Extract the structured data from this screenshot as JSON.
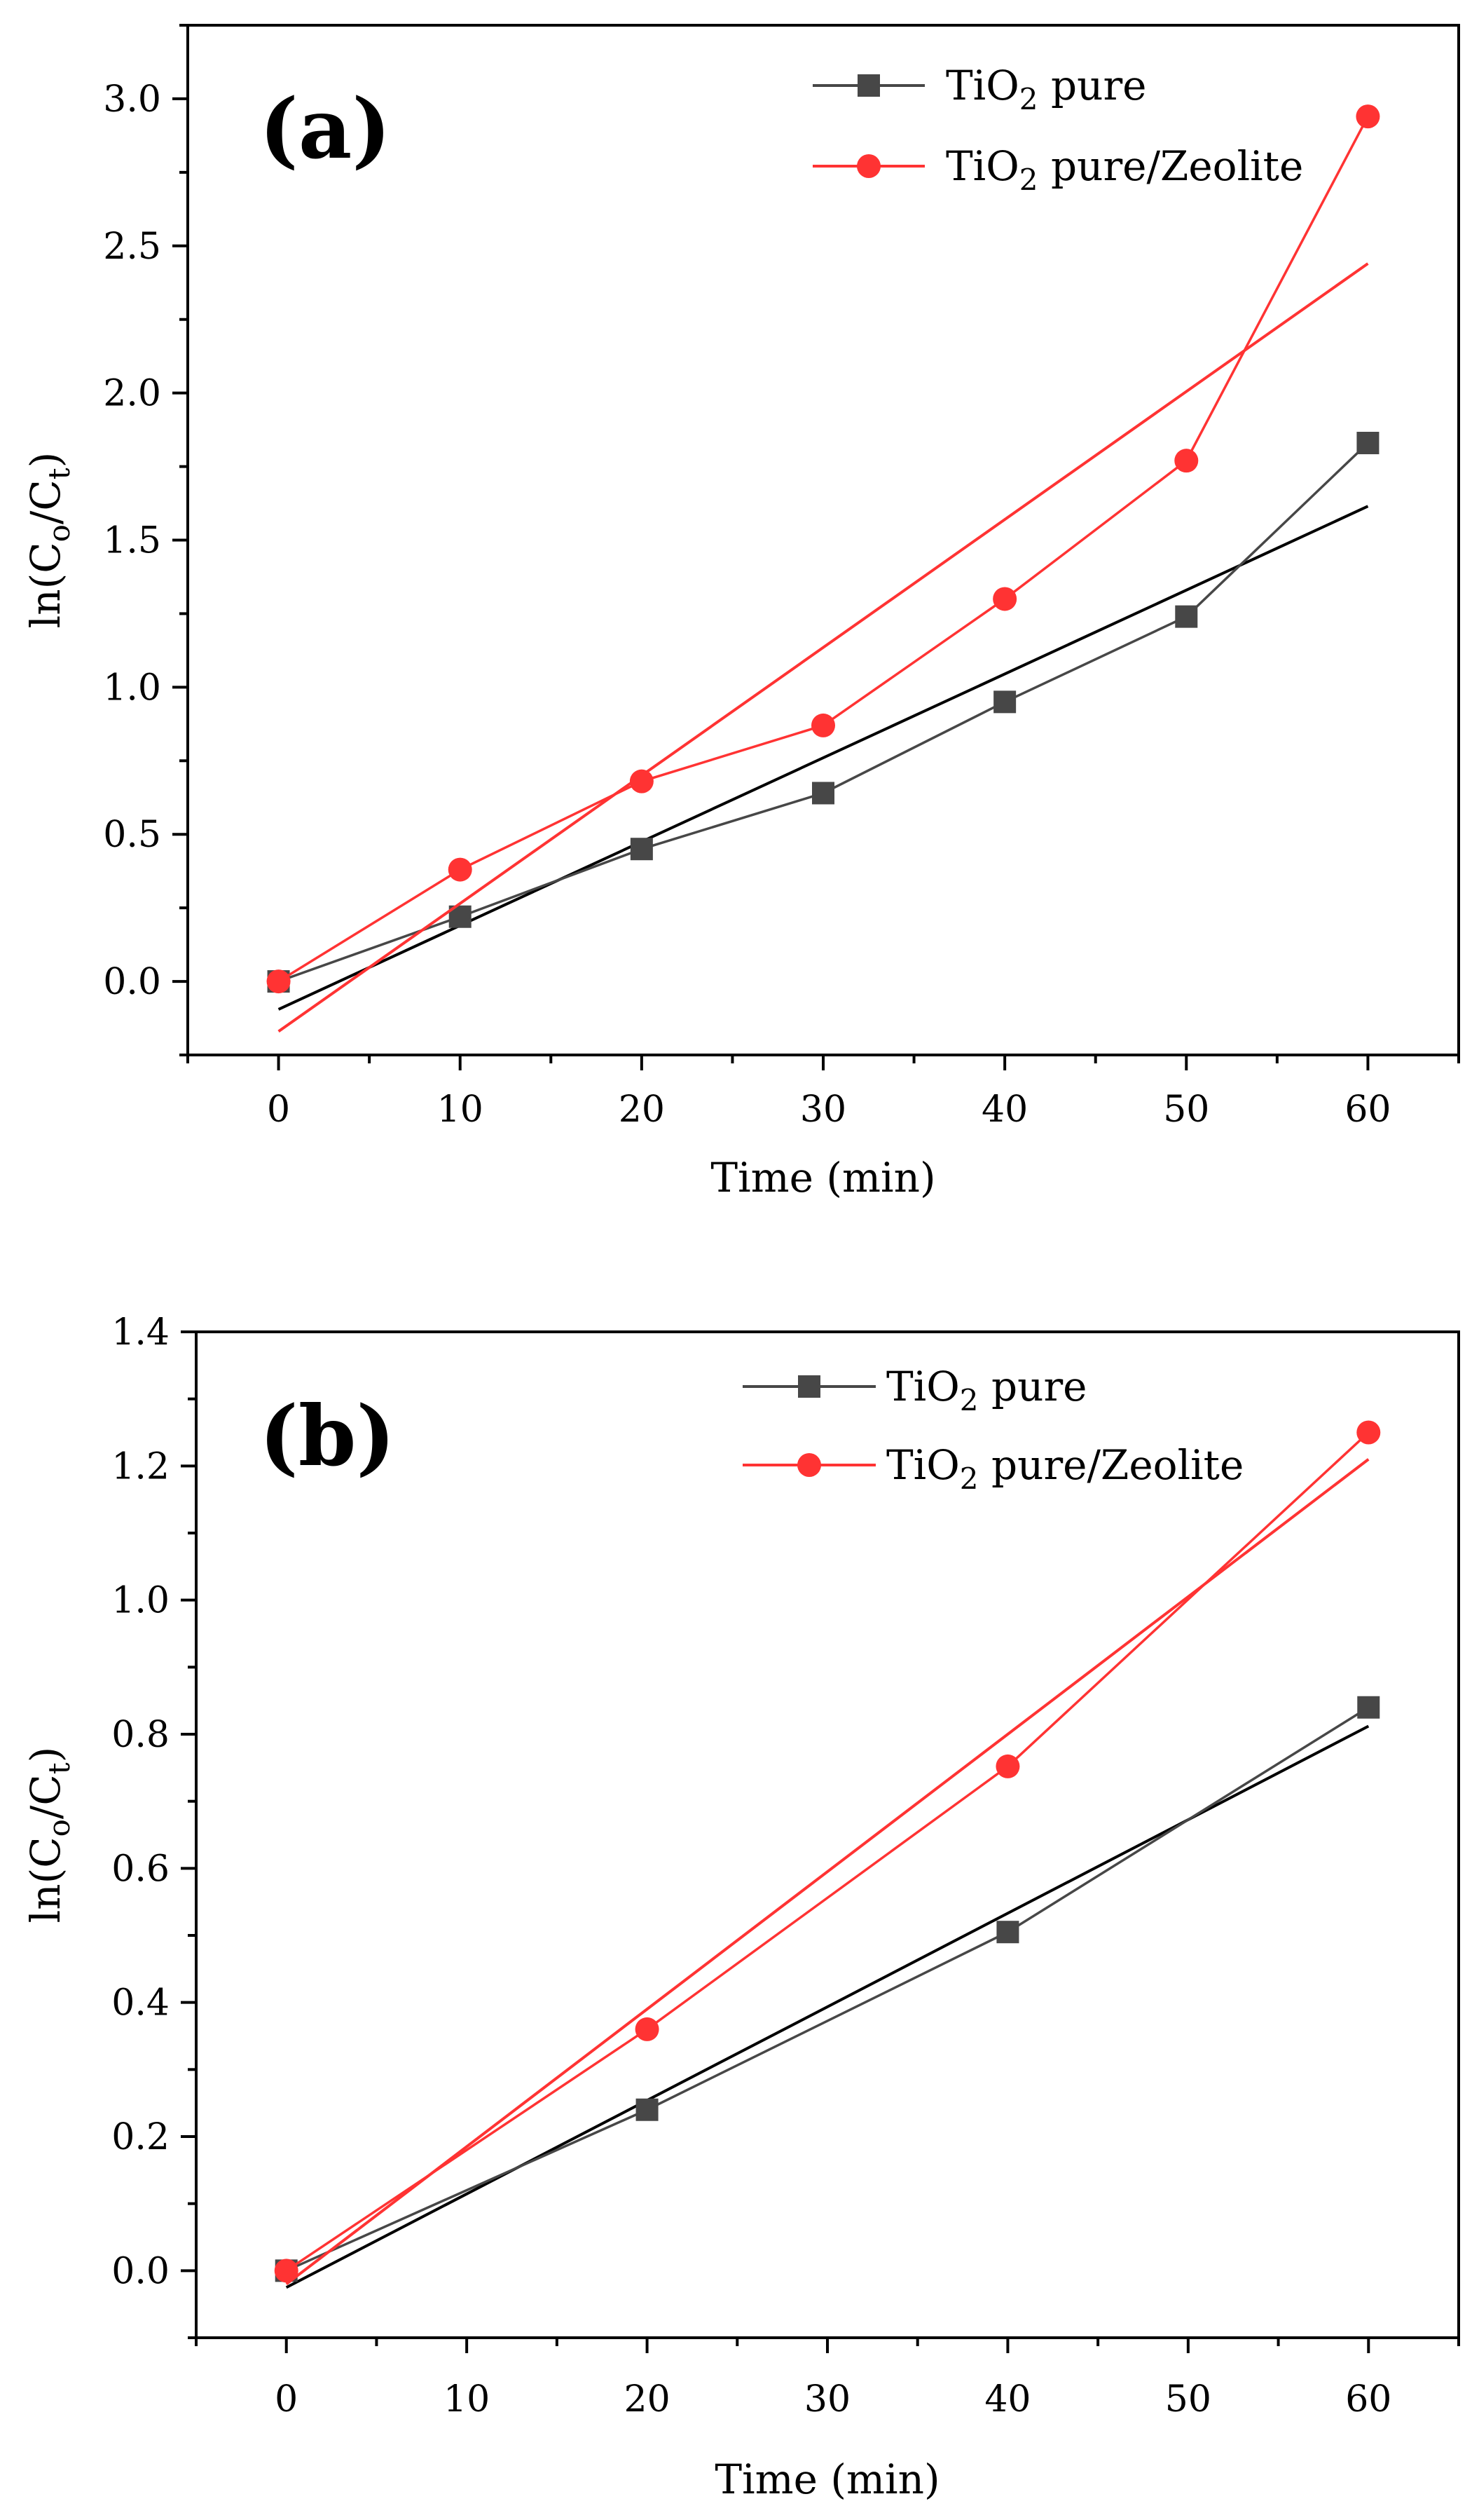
{
  "chart_data": [
    {
      "type": "line",
      "panel_label": "(a)",
      "xlabel": "Time (min)",
      "ylabel": "ln(Co/Ct)",
      "ylabel_parts": [
        "ln(C",
        "o",
        "/C",
        "t",
        ")"
      ],
      "xlim": [
        -5,
        65
      ],
      "ylim": [
        -0.25,
        3.25
      ],
      "xticks": [
        0,
        10,
        20,
        30,
        40,
        50,
        60
      ],
      "xtick_labels": [
        "0",
        "10",
        "20",
        "30",
        "40",
        "50",
        "60"
      ],
      "yticks": [
        0,
        0.5,
        1,
        1.5,
        2,
        2.5,
        3
      ],
      "ytick_labels": [
        "0.0",
        "0.5",
        "1.0",
        "1.5",
        "2.0",
        "2.5",
        "3.0"
      ],
      "grid": false,
      "legend_position": "top-right",
      "series": [
        {
          "name": "TiO2 pure",
          "name_parts": [
            "TiO",
            "2",
            " pure"
          ],
          "color": "#474747",
          "marker": "square",
          "x": [
            0,
            10,
            20,
            30,
            40,
            50,
            60
          ],
          "y": [
            0.0,
            0.22,
            0.45,
            0.64,
            0.95,
            1.24,
            1.83
          ],
          "fit": {
            "slope": 0.0285,
            "intercept": -0.095
          }
        },
        {
          "name": "TiO2 pure/Zeolite",
          "name_parts": [
            "TiO",
            "2",
            " pure/Zeolite"
          ],
          "color": "#ff3333",
          "marker": "circle",
          "x": [
            0,
            10,
            20,
            30,
            40,
            50,
            60
          ],
          "y": [
            0.0,
            0.38,
            0.68,
            0.87,
            1.3,
            1.77,
            2.94
          ],
          "fit": {
            "slope": 0.0435,
            "intercept": -0.17
          }
        }
      ]
    },
    {
      "type": "line",
      "panel_label": "(b)",
      "xlabel": "Time (min)",
      "ylabel": "ln(Co/Ct)",
      "ylabel_parts": [
        "ln(C",
        "o",
        "/C",
        "t",
        ")"
      ],
      "xlim": [
        -5,
        65
      ],
      "ylim": [
        -0.1,
        1.4
      ],
      "xticks": [
        0,
        10,
        20,
        30,
        40,
        50,
        60
      ],
      "xtick_labels": [
        "0",
        "10",
        "20",
        "30",
        "40",
        "50",
        "60"
      ],
      "yticks": [
        0,
        0.2,
        0.4,
        0.6,
        0.8,
        1,
        1.2,
        1.4
      ],
      "ytick_labels": [
        "0.0",
        "0.2",
        "0.4",
        "0.6",
        "0.8",
        "1.0",
        "1.2",
        "1.4"
      ],
      "grid": false,
      "legend_position": "top-right",
      "series": [
        {
          "name": "TiO2 pure",
          "name_parts": [
            "TiO",
            "2",
            " pure"
          ],
          "color": "#474747",
          "marker": "square",
          "x": [
            0,
            20,
            40,
            60
          ],
          "y": [
            0.0,
            0.24,
            0.505,
            0.84
          ],
          "fit": {
            "slope": 0.01395,
            "intercept": -0.025
          }
        },
        {
          "name": "TiO2 pure/Zeolite",
          "name_parts": [
            "TiO",
            "2",
            " pure/Zeolite"
          ],
          "color": "#ff3333",
          "marker": "circle",
          "x": [
            0,
            20,
            40,
            60
          ],
          "y": [
            0.0,
            0.36,
            0.752,
            1.25
          ],
          "fit": {
            "slope": 0.0205,
            "intercept": -0.02
          }
        }
      ]
    }
  ]
}
